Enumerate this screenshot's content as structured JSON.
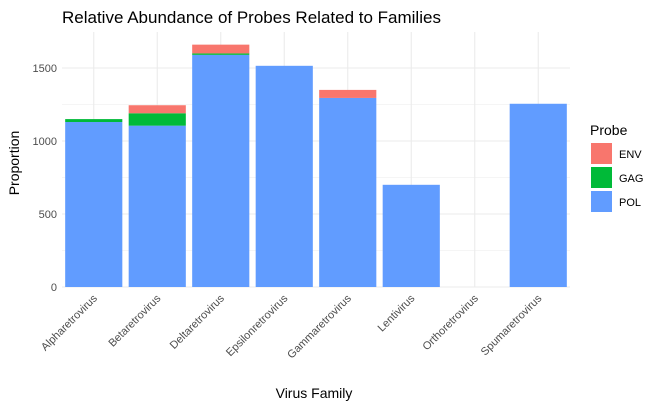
{
  "chart_data": {
    "type": "bar",
    "stacked": true,
    "title": "Relative Abundance of Probes Related to Families",
    "xlabel": "Virus Family",
    "ylabel": "Proportion",
    "categories": [
      "Alpharetrovirus",
      "Betaretrovirus",
      "Deltaretrovirus",
      "Epsilonretrovirus",
      "Gammaretrovirus",
      "Lentivirus",
      "Orthoretrovirus",
      "Spumaretrovirus"
    ],
    "series": [
      {
        "name": "POL",
        "color": "#619CFF",
        "values": [
          1130,
          1105,
          1590,
          1515,
          1295,
          700,
          0,
          1255
        ]
      },
      {
        "name": "GAG",
        "color": "#00BA38",
        "values": [
          20,
          85,
          10,
          0,
          0,
          0,
          0,
          0
        ]
      },
      {
        "name": "ENV",
        "color": "#F8766D",
        "values": [
          0,
          55,
          60,
          0,
          55,
          0,
          0,
          0
        ]
      }
    ],
    "yticks": [
      0,
      500,
      1000,
      1500
    ],
    "ylim": [
      -85,
      1745
    ],
    "grid": true,
    "legend": {
      "title": "Probe",
      "placement": "right",
      "entries": [
        {
          "name": "ENV",
          "color": "#F8766D"
        },
        {
          "name": "GAG",
          "color": "#00BA38"
        },
        {
          "name": "POL",
          "color": "#619CFF"
        }
      ]
    }
  }
}
